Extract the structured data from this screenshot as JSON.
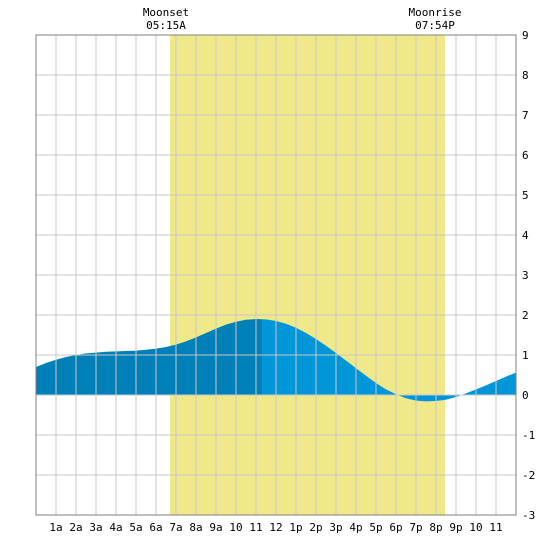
{
  "chart_data": {
    "type": "area",
    "title": "",
    "xlabel": "",
    "ylabel": "",
    "x_range": [
      0,
      24
    ],
    "ylim": [
      -3,
      9
    ],
    "y_ticks": [
      -3,
      -2,
      -1,
      0,
      1,
      2,
      3,
      4,
      5,
      6,
      7,
      8,
      9
    ],
    "x_ticks": [
      {
        "hour": 1,
        "label": "1a"
      },
      {
        "hour": 2,
        "label": "2a"
      },
      {
        "hour": 3,
        "label": "3a"
      },
      {
        "hour": 4,
        "label": "4a"
      },
      {
        "hour": 5,
        "label": "5a"
      },
      {
        "hour": 6,
        "label": "6a"
      },
      {
        "hour": 7,
        "label": "7a"
      },
      {
        "hour": 8,
        "label": "8a"
      },
      {
        "hour": 9,
        "label": "9a"
      },
      {
        "hour": 10,
        "label": "10"
      },
      {
        "hour": 11,
        "label": "11"
      },
      {
        "hour": 12,
        "label": "12"
      },
      {
        "hour": 13,
        "label": "1p"
      },
      {
        "hour": 14,
        "label": "2p"
      },
      {
        "hour": 15,
        "label": "3p"
      },
      {
        "hour": 16,
        "label": "4p"
      },
      {
        "hour": 17,
        "label": "5p"
      },
      {
        "hour": 18,
        "label": "6p"
      },
      {
        "hour": 19,
        "label": "7p"
      },
      {
        "hour": 20,
        "label": "8p"
      },
      {
        "hour": 21,
        "label": "9p"
      },
      {
        "hour": 22,
        "label": "10"
      },
      {
        "hour": 23,
        "label": "11"
      }
    ],
    "grid": true,
    "daylight": {
      "start_hour": 6.7,
      "end_hour": 20.45,
      "color": "#f0e98a"
    },
    "annotations": [
      {
        "title": "Moonset",
        "time": "05:15A",
        "hour": 7.0
      },
      {
        "title": "Moonrise",
        "time": "07:54P",
        "hour": 20.45
      }
    ],
    "tide_peak_hour": 11.3,
    "colors": {
      "before_peak": "#0080b8",
      "after_peak": "#0096d8",
      "grid": "#c8c8c8",
      "border": "#808080"
    },
    "series": [
      {
        "x": [
          0,
          0.5,
          1,
          1.5,
          2,
          2.5,
          3,
          3.5,
          4,
          4.5,
          5,
          5.5,
          6,
          6.5,
          7,
          7.5,
          8,
          8.5,
          9,
          9.5,
          10,
          10.5,
          11,
          11.5,
          12,
          12.5,
          13,
          13.5,
          14,
          14.5,
          15,
          15.5,
          16,
          16.5,
          17,
          17.5,
          18,
          18.5,
          19,
          19.5,
          20,
          20.5,
          21,
          21.5,
          22,
          22.5,
          23,
          23.5,
          24
        ],
        "y": [
          0.7,
          0.8,
          0.88,
          0.95,
          1.0,
          1.04,
          1.06,
          1.08,
          1.09,
          1.1,
          1.11,
          1.13,
          1.16,
          1.2,
          1.26,
          1.34,
          1.44,
          1.55,
          1.66,
          1.76,
          1.83,
          1.88,
          1.9,
          1.89,
          1.85,
          1.78,
          1.68,
          1.55,
          1.4,
          1.23,
          1.05,
          0.86,
          0.67,
          0.48,
          0.3,
          0.14,
          0.02,
          -0.08,
          -0.14,
          -0.16,
          -0.15,
          -0.12,
          -0.05,
          0.04,
          0.14,
          0.24,
          0.35,
          0.46,
          0.56
        ]
      }
    ]
  }
}
